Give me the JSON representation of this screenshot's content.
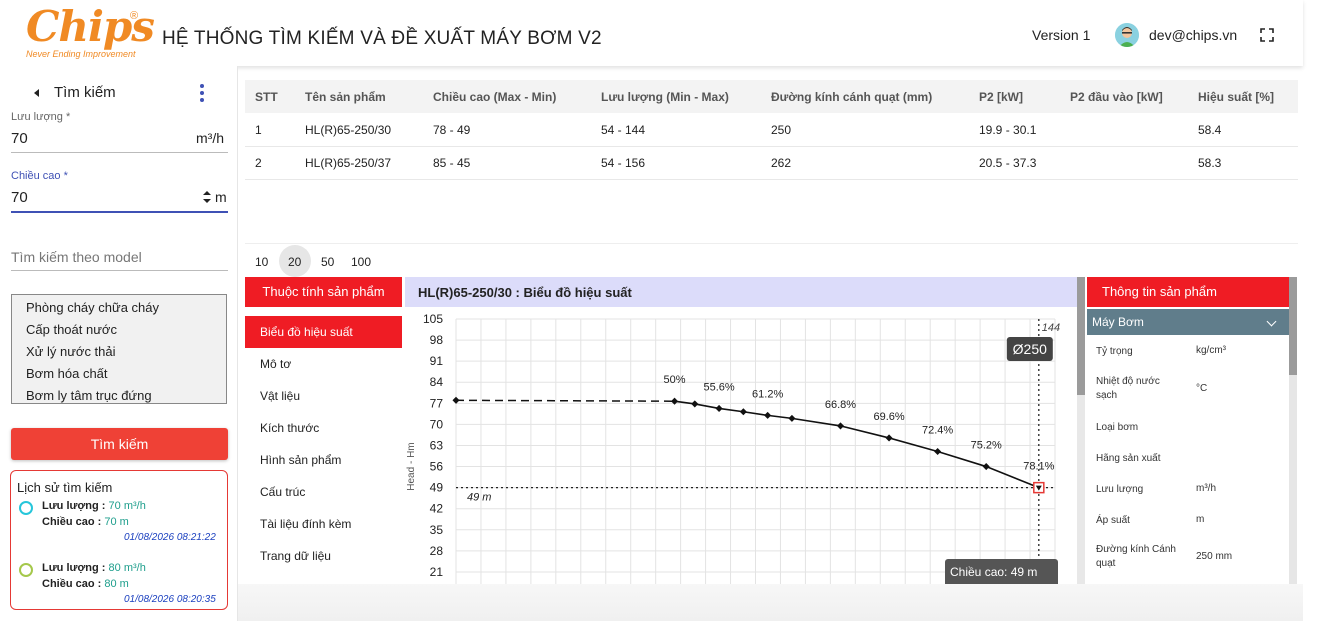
{
  "header": {
    "logo_text": "Chips",
    "logo_reg": "®",
    "logo_tagline": "Never Ending Improvement",
    "title": "HỆ THỐNG TÌM KIẾM VÀ ĐỀ XUẤT MÁY BƠM V2",
    "version": "Version 1",
    "user_email": "dev@chips.vn",
    "fullscreen_icon": "fullscreen-icon"
  },
  "sidebar": {
    "title": "Tìm kiếm",
    "flow": {
      "label": "Lưu lượng *",
      "value": "70",
      "unit": "m³/h"
    },
    "head": {
      "label": "Chiều cao *",
      "value": "70",
      "unit": "m"
    },
    "model_search": {
      "placeholder": "Tìm kiếm theo model"
    },
    "categories": [
      "Phòng cháy chữa cháy",
      "Cấp thoát nước",
      "Xử lý nước thải",
      "Bơm hóa chất",
      "Bơm ly tâm trục đứng"
    ],
    "search_button": "Tìm kiếm",
    "history": {
      "title": "Lịch sử tìm kiếm",
      "flow_label": "Lưu lượng :",
      "head_label": "Chiều cao :",
      "items": [
        {
          "flow": "70 m³/h",
          "head": "70 m",
          "date": "01/08/2026 08:21:22",
          "color": "#26c6da"
        },
        {
          "flow": "80 m³/h",
          "head": "80 m",
          "date": "01/08/2026 08:20:35",
          "color": "#a5c84b"
        }
      ]
    }
  },
  "table": {
    "headers": [
      "STT",
      "Tên sản phẩm",
      "Chiều cao (Max - Min)",
      "Lưu lượng (Min - Max)",
      "Đường kính cánh quạt (mm)",
      "P2 [kW]",
      "P2 đầu vào [kW]",
      "Hiệu suất [%]"
    ],
    "rows": [
      [
        "1",
        "HL(R)65-250/30",
        "78 - 49",
        "54 - 144",
        "250",
        "19.9 - 30.1",
        "",
        "58.4"
      ],
      [
        "2",
        "HL(R)65-250/37",
        "85 - 45",
        "54 - 156",
        "262",
        "20.5 - 37.3",
        "",
        "58.3"
      ]
    ]
  },
  "pagination": {
    "sizes": [
      "10",
      "20",
      "50",
      "100"
    ],
    "selected": "20"
  },
  "properties": {
    "header": "Thuộc tính sản phẩm",
    "items": [
      "Biểu đồ hiệu suất",
      "Mô tơ",
      "Vật liệu",
      "Kích thước",
      "Hình sản phẩm",
      "Cấu trúc",
      "Tài liệu đính kèm",
      "Trang dữ liệu"
    ],
    "active": "Biểu đồ hiệu suất"
  },
  "chart_data": {
    "type": "line",
    "title": "HL(R)65-250/30 : Biểu đồ hiệu suất",
    "ylabel": "Head - Hm",
    "yticks": [
      105,
      98,
      91,
      84,
      77,
      70,
      63,
      56,
      49,
      42,
      35,
      28,
      21
    ],
    "ylim": [
      17,
      105
    ],
    "xlim": [
      0,
      148
    ],
    "grid": true,
    "dashed_segment": [
      {
        "x": 0,
        "y": 78
      },
      {
        "x": 54,
        "y": 77.7
      }
    ],
    "curve": [
      {
        "x": 54,
        "y": 77.7
      },
      {
        "x": 59,
        "y": 76.8
      },
      {
        "x": 65,
        "y": 75.3
      },
      {
        "x": 71,
        "y": 74.2
      },
      {
        "x": 77,
        "y": 73
      },
      {
        "x": 83,
        "y": 72
      },
      {
        "x": 95,
        "y": 69.5
      },
      {
        "x": 107,
        "y": 65.5
      },
      {
        "x": 119,
        "y": 61
      },
      {
        "x": 131,
        "y": 56
      },
      {
        "x": 144,
        "y": 49
      }
    ],
    "efficiency_labels": [
      {
        "label": "50%",
        "x": 54,
        "y": 77.7
      },
      {
        "label": "55.6%",
        "x": 65,
        "y": 75.3
      },
      {
        "label": "61.2%",
        "x": 77,
        "y": 73
      },
      {
        "label": "66.8%",
        "x": 95,
        "y": 69.5
      },
      {
        "label": "69.6%",
        "x": 107,
        "y": 65.5
      },
      {
        "label": "72.4%",
        "x": 119,
        "y": 61
      },
      {
        "label": "75.2%",
        "x": 131,
        "y": 56
      },
      {
        "label": "78.1%",
        "x": 144,
        "y": 49
      }
    ],
    "ref_head": 49,
    "ref_head_label": "49 m",
    "ref_flow": 144,
    "ref_flow_label": "144",
    "impeller_label": "Ø250",
    "tooltip_line1": "Chiều cao: 49 m"
  },
  "info": {
    "header": "Thông tin sản phẩm",
    "section": "Máy Bơm",
    "rows": [
      {
        "label": "Tỷ trọng",
        "value": "kg/cm³"
      },
      {
        "label": "Nhiệt độ nước sạch",
        "value": "°C"
      },
      {
        "label": "Loại bơm",
        "value": ""
      },
      {
        "label": "Hãng sản xuất",
        "value": ""
      },
      {
        "label": "Lưu lượng",
        "value": "m³/h"
      },
      {
        "label": "Áp suất",
        "value": "m"
      },
      {
        "label": "Đường kính Cánh quạt",
        "value": "250 mm"
      }
    ]
  }
}
